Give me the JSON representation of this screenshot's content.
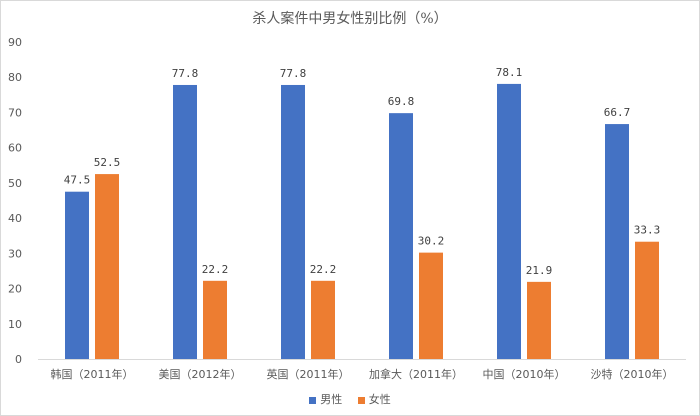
{
  "chart_data": {
    "type": "bar",
    "title": "杀人案件中男女性别比例（%）",
    "categories": [
      "韩国（2011年）",
      "美国（2012年）",
      "英国（2011年）",
      "加拿大（2011年）",
      "中国（2010年）",
      "沙特（2010年）"
    ],
    "series": [
      {
        "name": "男性",
        "color": "#4472C4",
        "values": [
          47.5,
          77.8,
          77.8,
          69.8,
          78.1,
          66.7
        ]
      },
      {
        "name": "女性",
        "color": "#ED7D31",
        "values": [
          52.5,
          22.2,
          22.2,
          30.2,
          21.9,
          33.3
        ]
      }
    ],
    "data_labels": [
      [
        "47.5",
        "77.8",
        "77.8",
        "69.8",
        "78.1",
        "66.7"
      ],
      [
        "52.5",
        "22.2",
        "22.2",
        "30.2",
        "21.9",
        "33.3"
      ]
    ],
    "ylim": [
      0,
      90
    ],
    "yticks": [
      "0",
      "10",
      "20",
      "30",
      "40",
      "50",
      "60",
      "70",
      "80",
      "90"
    ],
    "grid": false,
    "legend": "bottom"
  }
}
